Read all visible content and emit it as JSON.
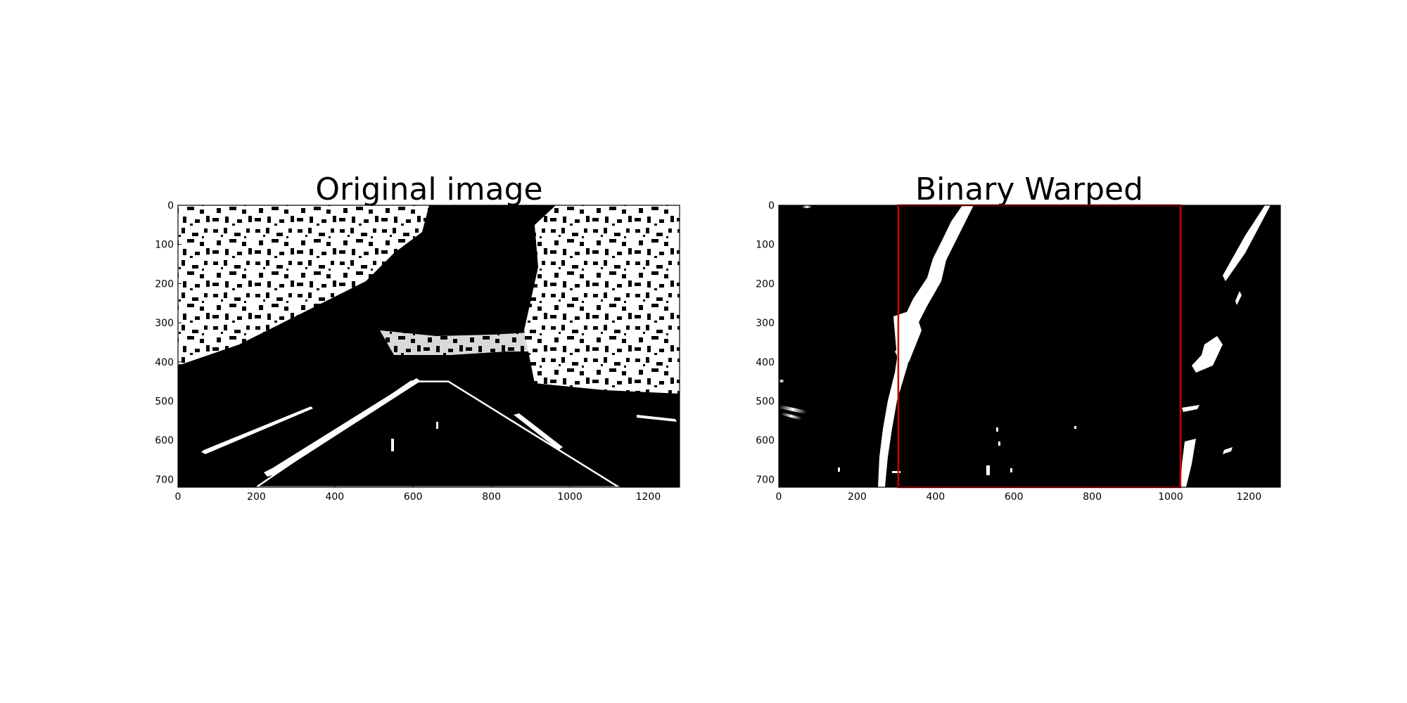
{
  "chart_data": [
    {
      "type": "image",
      "title": "Original image",
      "xlim": [
        0,
        1280
      ],
      "ylim": [
        720,
        0
      ],
      "x_ticks": [
        0,
        200,
        400,
        600,
        800,
        1000,
        1200
      ],
      "y_ticks": [
        0,
        100,
        200,
        300,
        400,
        500,
        600,
        700
      ],
      "overlay_polygon": {
        "color": "#ffffff",
        "points": [
          [
            200,
            720
          ],
          [
            595,
            450
          ],
          [
            690,
            450
          ],
          [
            1125,
            720
          ]
        ]
      }
    },
    {
      "type": "image",
      "title": "Binary Warped",
      "xlim": [
        0,
        1280
      ],
      "ylim": [
        720,
        0
      ],
      "x_ticks": [
        0,
        200,
        400,
        600,
        800,
        1000,
        1200
      ],
      "y_ticks": [
        0,
        100,
        200,
        300,
        400,
        500,
        600,
        700
      ],
      "overlay_polygon": {
        "color": "#cc0000",
        "points": [
          [
            305,
            0
          ],
          [
            305,
            720
          ],
          [
            1025,
            720
          ],
          [
            1025,
            0
          ]
        ]
      }
    }
  ]
}
